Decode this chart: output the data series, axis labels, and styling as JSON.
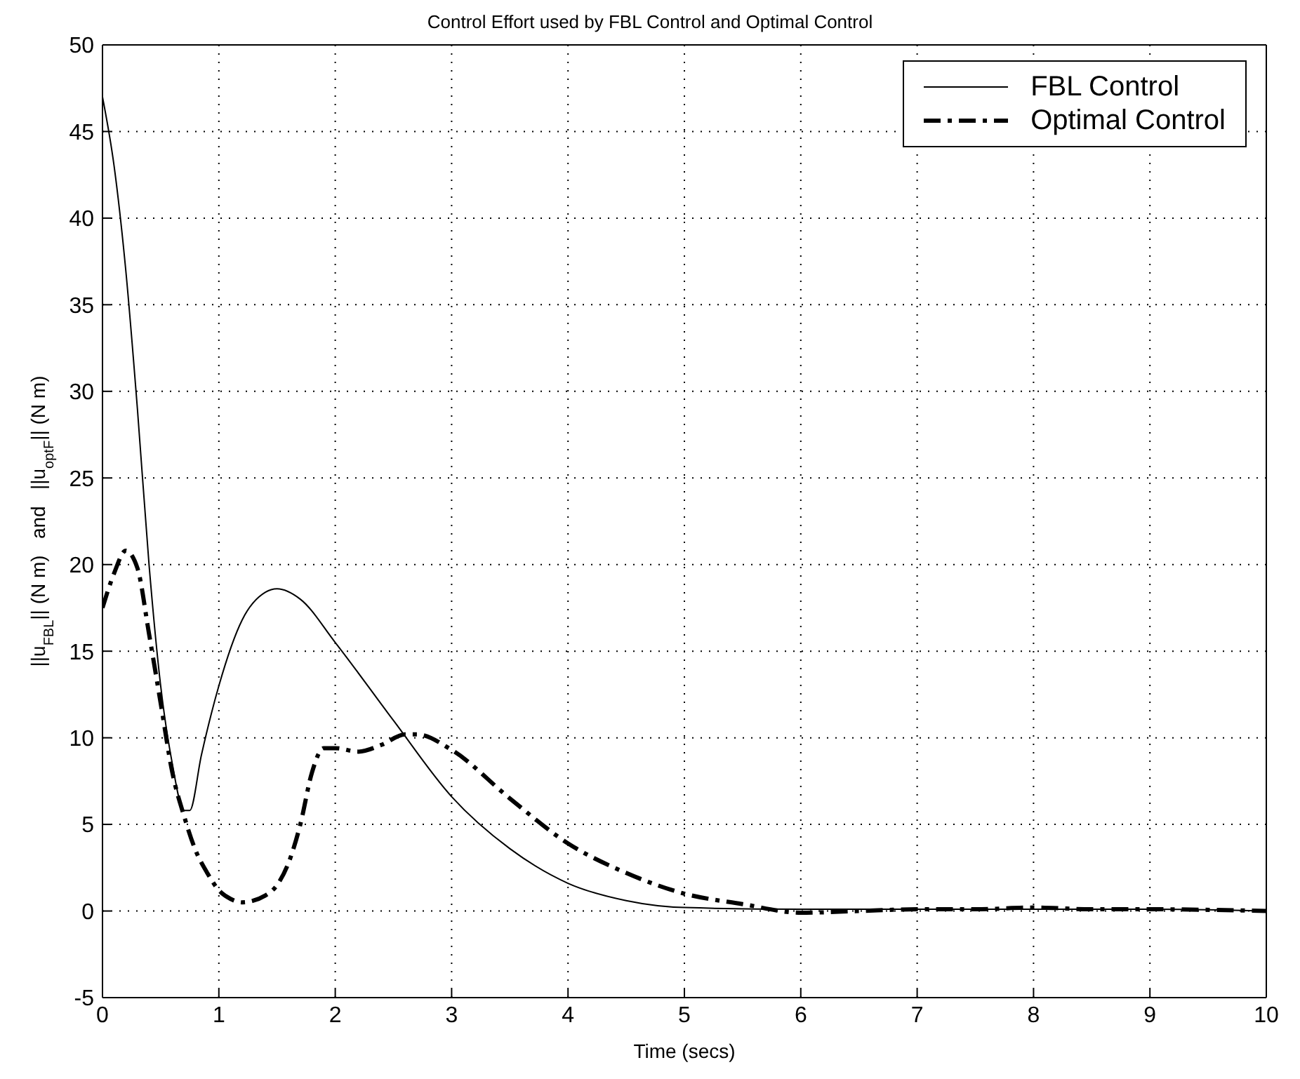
{
  "chart_data": {
    "type": "line",
    "title": "Control Effort used by FBL Control and Optimal Control",
    "xlabel": "Time (secs)",
    "ylabel": "||u$_{FBL}$|| (N m)   and   ||u$_{optF}$|| (N m)",
    "xlim": [
      0,
      10
    ],
    "xticks": [
      0,
      1,
      2,
      3,
      4,
      5,
      6,
      7,
      8,
      9,
      10
    ],
    "ylim": [
      -5,
      50
    ],
    "yticks": [
      -5,
      0,
      5,
      10,
      15,
      20,
      25,
      30,
      35,
      40,
      45,
      50
    ],
    "grid": true,
    "legend": "top right",
    "marker": "none",
    "series": [
      {
        "name": "FBL Control",
        "color": "#000000",
        "line_style": "solid",
        "x": [
          0,
          0.1,
          0.2,
          0.3,
          0.4,
          0.5,
          0.6,
          0.7,
          0.75,
          0.85,
          1,
          1.2,
          1.4,
          1.5,
          1.7,
          2,
          2.5,
          3,
          3.5,
          4,
          4.5,
          5,
          6,
          7,
          8,
          9,
          10
        ],
        "values": [
          47,
          43,
          37,
          29,
          20,
          13,
          8.5,
          5.8,
          5.8,
          9,
          13,
          16.8,
          18.4,
          18.6,
          18,
          15.5,
          11,
          6.6,
          3.6,
          1.6,
          0.6,
          0.2,
          0.1,
          0.1,
          0.1,
          0.1,
          0
        ]
      },
      {
        "name": "Optimal Control",
        "color": "#000000",
        "line_style": "dashed",
        "x": [
          0,
          0.1,
          0.2,
          0.3,
          0.4,
          0.5,
          0.6,
          0.7,
          0.8,
          0.9,
          1,
          1.1,
          1.2,
          1.4,
          1.5,
          1.6,
          1.7,
          1.8,
          1.9,
          2,
          2.2,
          2.4,
          2.6,
          2.7,
          3,
          3.5,
          4,
          4.5,
          5,
          5.5,
          6,
          6.5,
          7,
          7.5,
          8,
          8.5,
          9,
          10
        ],
        "values": [
          17.5,
          19.5,
          20.8,
          19.8,
          16,
          12,
          8,
          5.5,
          3.5,
          2.2,
          1.2,
          0.7,
          0.5,
          0.9,
          1.5,
          2.8,
          5,
          8,
          9.4,
          9.4,
          9.2,
          9.6,
          10.2,
          10.2,
          9.3,
          6.5,
          3.9,
          2.2,
          1,
          0.4,
          -0.1,
          0,
          0.1,
          0.1,
          0.2,
          0.1,
          0.1,
          0
        ]
      }
    ]
  }
}
